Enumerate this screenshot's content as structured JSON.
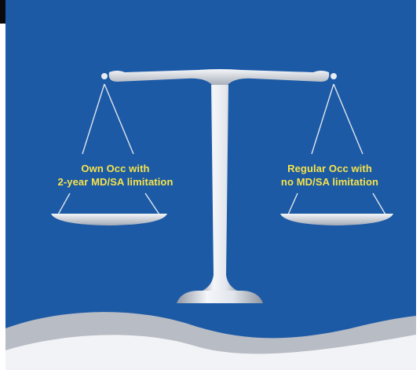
{
  "colors": {
    "background_blue": "#1c5aa6",
    "scale_silver": "#e4e8ee",
    "label_yellow": "#f6e34a",
    "curve_gray": "#b8bcc4"
  },
  "scale": {
    "icon": "balance-scale-icon",
    "left_pan": {
      "line1": "Own Occ with",
      "line2": "2-year MD/SA limitation"
    },
    "right_pan": {
      "line1": "Regular Occ with",
      "line2": "no MD/SA limitation"
    }
  }
}
